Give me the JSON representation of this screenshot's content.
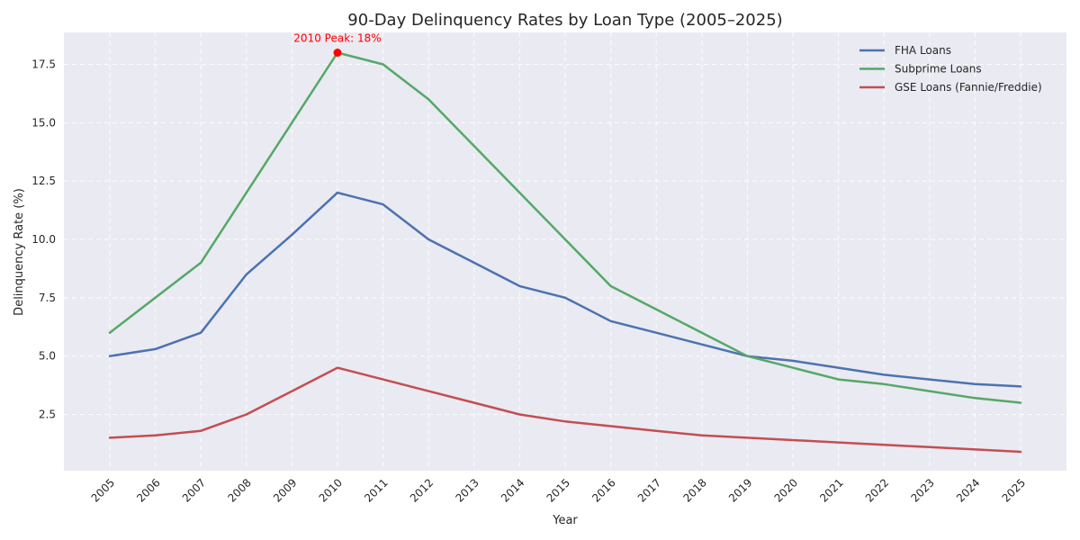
{
  "chart_data": {
    "type": "line",
    "title": "90-Day Delinquency Rates by Loan Type (2005–2025)",
    "xlabel": "Year",
    "ylabel": "Delinquency Rate (%)",
    "x": [
      "2005",
      "2006",
      "2007",
      "2008",
      "2009",
      "2010",
      "2011",
      "2012",
      "2013",
      "2014",
      "2015",
      "2016",
      "2017",
      "2018",
      "2019",
      "2020",
      "2021",
      "2022",
      "2023",
      "2024",
      "2025"
    ],
    "ylim": [
      0,
      18.8
    ],
    "yticks": [
      2.5,
      5.0,
      7.5,
      10.0,
      12.5,
      15.0,
      17.5
    ],
    "ytick_labels": [
      "2.5",
      "5.0",
      "7.5",
      "10.0",
      "12.5",
      "15.0",
      "17.5"
    ],
    "grid": true,
    "legend_position": "top-right",
    "series": [
      {
        "name": "FHA Loans",
        "color": "#4c72b0",
        "values": [
          5.0,
          5.3,
          6.0,
          8.5,
          10.2,
          12.0,
          11.5,
          10.0,
          9.0,
          8.0,
          7.5,
          6.5,
          6.0,
          5.5,
          5.0,
          4.8,
          4.5,
          4.2,
          4.0,
          3.8,
          3.7
        ]
      },
      {
        "name": "Subprime Loans",
        "color": "#55a868",
        "values": [
          6.0,
          7.5,
          9.0,
          12.0,
          15.0,
          18.0,
          17.5,
          16.0,
          14.0,
          12.0,
          10.0,
          8.0,
          7.0,
          6.0,
          5.0,
          4.5,
          4.0,
          3.8,
          3.5,
          3.2,
          3.0
        ]
      },
      {
        "name": "GSE Loans (Fannie/Freddie)",
        "color": "#c44e52",
        "values": [
          1.5,
          1.6,
          1.8,
          2.5,
          3.5,
          4.5,
          4.0,
          3.5,
          3.0,
          2.5,
          2.2,
          2.0,
          1.8,
          1.6,
          1.5,
          1.4,
          1.3,
          1.2,
          1.1,
          1.0,
          0.9
        ]
      }
    ],
    "annotations": [
      {
        "text": "2010 Peak: 18%",
        "x": "2010",
        "y": 18.0,
        "color": "#ff0000"
      }
    ]
  }
}
